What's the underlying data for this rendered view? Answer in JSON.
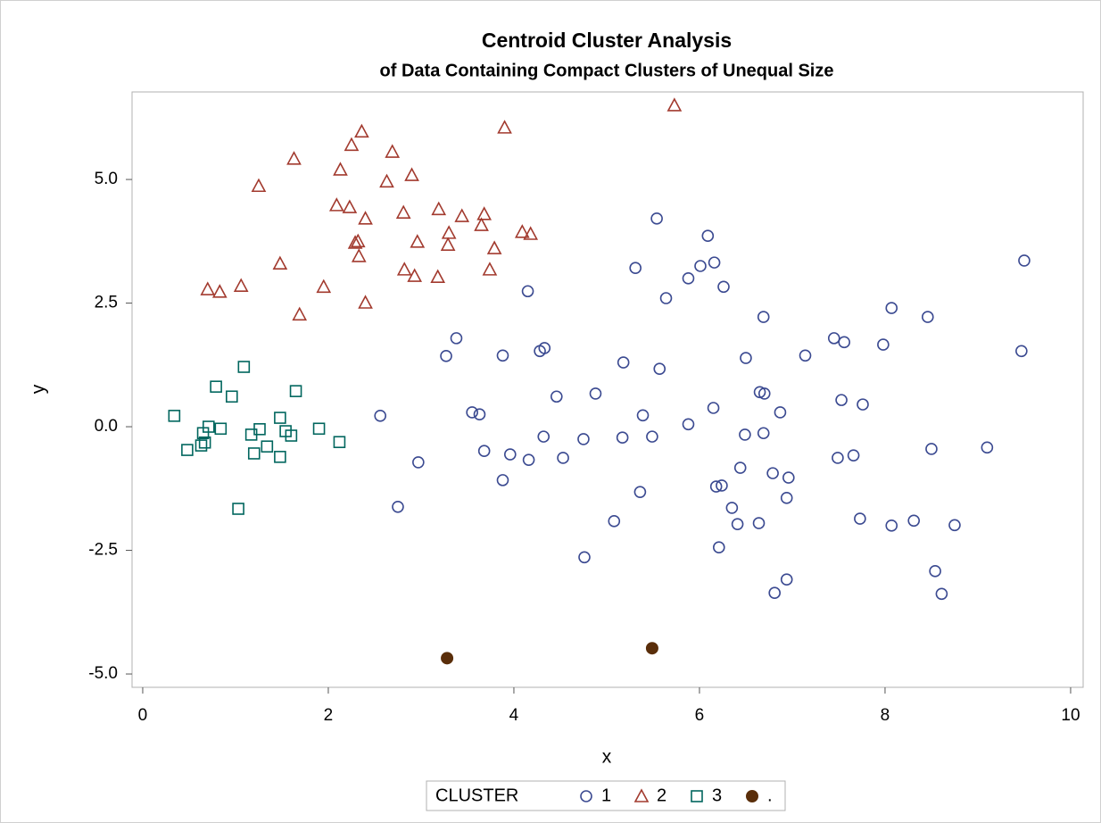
{
  "chart_data": {
    "type": "scatter",
    "title": "Centroid Cluster Analysis",
    "subtitle": "of Data Containing Compact Clusters of Unequal Size",
    "x_label": "x",
    "y_label": "y",
    "legend_title": "CLUSTER",
    "xlim": [
      -0.115,
      10.135
    ],
    "ylim": [
      -5.27,
      6.77
    ],
    "xticks": [
      0,
      2,
      4,
      6,
      8,
      10
    ],
    "yticks": [
      {
        "value": -5,
        "label": "-5.0"
      },
      {
        "value": -2.5,
        "label": "-2.5"
      },
      {
        "value": 0,
        "label": "0.0"
      },
      {
        "value": 2.5,
        "label": "2.5"
      },
      {
        "value": 5,
        "label": "5.0"
      }
    ],
    "series": [
      {
        "name": "1",
        "color": "#3b4a91",
        "marker": "circle",
        "x": [
          5.54,
          6.09,
          5.31,
          6.01,
          6.16,
          5.88,
          6.26,
          9.5,
          4.15,
          5.64,
          6.69,
          8.07,
          8.46,
          3.38,
          7.45,
          7.56,
          7.98,
          9.47,
          3.27,
          3.88,
          4.28,
          4.33,
          5.18,
          5.57,
          6.5,
          7.14,
          4.46,
          4.88,
          6.65,
          6.7,
          2.56,
          3.55,
          3.63,
          5.39,
          5.88,
          6.15,
          7.53,
          7.76,
          6.87,
          4.32,
          4.75,
          5.17,
          5.49,
          6.49,
          6.69,
          2.97,
          3.68,
          3.96,
          4.16,
          4.53,
          7.49,
          7.66,
          8.5,
          9.1,
          6.44,
          6.79,
          6.96,
          3.88,
          5.36,
          6.18,
          6.24,
          6.35,
          6.41,
          6.94,
          2.75,
          5.08,
          6.64,
          7.73,
          8.07,
          8.31,
          8.75,
          6.21,
          4.76,
          8.54,
          6.81,
          8.61,
          6.94
        ],
        "y": [
          4.21,
          3.86,
          3.21,
          3.25,
          3.32,
          3.0,
          2.83,
          3.36,
          2.74,
          2.6,
          2.22,
          2.4,
          2.22,
          1.79,
          1.79,
          1.71,
          1.66,
          1.53,
          1.43,
          1.44,
          1.53,
          1.59,
          1.3,
          1.17,
          1.39,
          1.44,
          0.61,
          0.67,
          0.7,
          0.67,
          0.22,
          0.29,
          0.25,
          0.23,
          0.05,
          0.38,
          0.54,
          0.45,
          0.29,
          -0.2,
          -0.25,
          -0.22,
          -0.2,
          -0.16,
          -0.13,
          -0.72,
          -0.49,
          -0.56,
          -0.67,
          -0.63,
          -0.63,
          -0.58,
          -0.45,
          -0.42,
          -0.83,
          -0.94,
          -1.03,
          -1.08,
          -1.32,
          -1.21,
          -1.19,
          -1.64,
          -1.97,
          -1.44,
          -1.62,
          -1.91,
          -1.95,
          -1.86,
          -2.0,
          -1.9,
          -1.99,
          -2.44,
          -2.64,
          -2.92,
          -3.36,
          -3.38,
          -3.09
        ]
      },
      {
        "name": "2",
        "color": "#a23a2e",
        "marker": "triangle",
        "x": [
          5.73,
          2.36,
          3.9,
          2.25,
          2.69,
          1.63,
          2.13,
          1.25,
          2.63,
          2.9,
          2.09,
          2.23,
          2.4,
          2.81,
          3.19,
          3.44,
          3.68,
          3.65,
          4.09,
          4.18,
          3.3,
          2.29,
          2.32,
          2.96,
          3.29,
          3.79,
          2.33,
          1.48,
          2.82,
          3.74,
          2.93,
          3.18,
          1.06,
          0.7,
          0.83,
          1.95,
          2.4,
          1.69
        ],
        "y": [
          6.5,
          5.97,
          6.05,
          5.7,
          5.56,
          5.42,
          5.2,
          4.87,
          4.96,
          5.09,
          4.48,
          4.44,
          4.21,
          4.33,
          4.4,
          4.26,
          4.3,
          4.08,
          3.94,
          3.9,
          3.92,
          3.72,
          3.75,
          3.74,
          3.68,
          3.61,
          3.45,
          3.3,
          3.18,
          3.18,
          3.05,
          3.03,
          2.85,
          2.78,
          2.73,
          2.83,
          2.51,
          2.27
        ]
      },
      {
        "name": "3",
        "color": "#01665e",
        "marker": "square",
        "x": [
          1.09,
          0.79,
          1.65,
          0.96,
          0.34,
          1.48,
          0.71,
          0.84,
          1.26,
          1.9,
          0.65,
          1.17,
          1.54,
          1.6,
          0.67,
          0.63,
          2.12,
          0.48,
          1.34,
          1.2,
          1.48,
          1.03
        ],
        "y": [
          1.21,
          0.81,
          0.72,
          0.61,
          0.22,
          0.18,
          0.0,
          -0.04,
          -0.05,
          -0.04,
          -0.13,
          -0.16,
          -0.09,
          -0.18,
          -0.32,
          -0.38,
          -0.31,
          -0.47,
          -0.4,
          -0.54,
          -0.61,
          -1.66
        ]
      },
      {
        "name": ".",
        "color": "#5a2e0a",
        "marker": "dot",
        "x": [
          3.28,
          5.49
        ],
        "y": [
          -4.68,
          -4.48
        ]
      }
    ]
  }
}
